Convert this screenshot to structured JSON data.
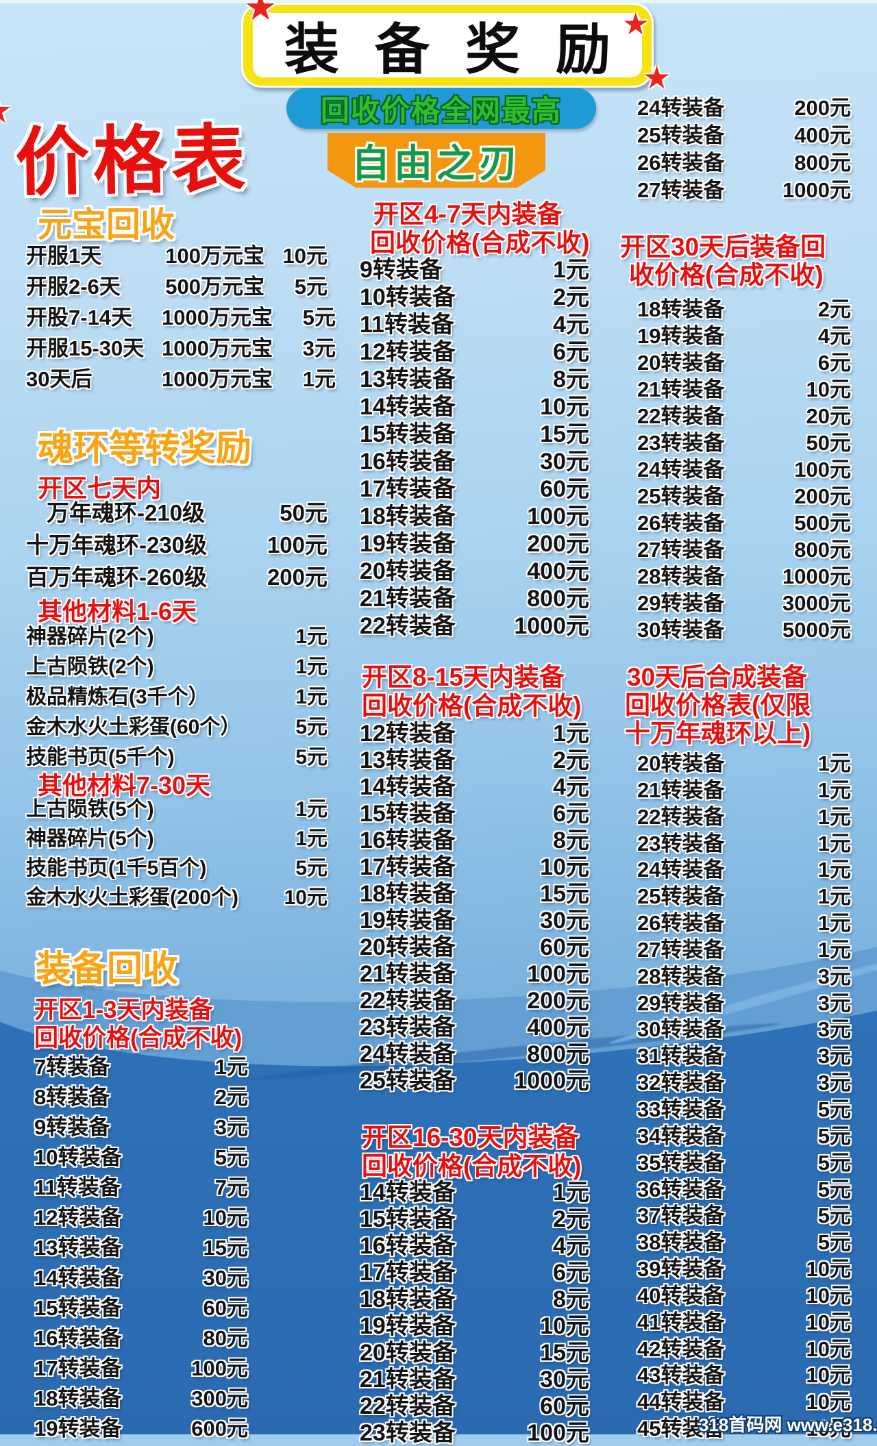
{
  "banner": {
    "title": "装备奖励"
  },
  "tagline": "回收价格全网最高",
  "game_name": "自由之刃",
  "page_title": "价格表",
  "watermark": "318首码网 www.e318.com",
  "colors": {
    "banner_yellow": "#f6e412",
    "pill_blue": "#1e9bd7",
    "tagline_green": "#2fbe2e",
    "blade_orange": "#f2970f",
    "blade_green": "#149a4a",
    "accent_red": "#e8100e",
    "header_orange": "#f8a414",
    "bg_light": "#cde7f8",
    "bg_dark": "#2d6eb4",
    "star_red": "#e8251c"
  },
  "left": {
    "yuanbao": {
      "header": "元宝回收",
      "rows": [
        {
          "label": "开服1天",
          "amount": "100万元宝",
          "price": "10元"
        },
        {
          "label": "开服2-6天",
          "amount": "500万元宝",
          "price": "5元"
        },
        {
          "label": "开股7-14天",
          "amount": "1000万元宝",
          "price": "5元"
        },
        {
          "label": "开服15-30天",
          "amount": "1000万元宝",
          "price": "3元"
        },
        {
          "label": "30天后",
          "amount": "1000万元宝",
          "price": "1元"
        }
      ]
    },
    "soulring": {
      "header": "魂环等转奖励",
      "sub1": "开区七天内",
      "ring_rows": [
        {
          "label": "万年魂环-210级",
          "price": "50元",
          "indent": true
        },
        {
          "label": "十万年魂环-230级",
          "price": "100元"
        },
        {
          "label": "百万年魂环-260级",
          "price": "200元"
        }
      ],
      "sub2": "其他材料1-6天",
      "mat1_rows": [
        {
          "label": "神器碎片(2个)",
          "price": "1元"
        },
        {
          "label": "上古陨铁(2个)",
          "price": "1元"
        },
        {
          "label": "极品精炼石(3千个）",
          "price": "1元"
        },
        {
          "label": "金木水火土彩蛋(60个）",
          "price": "5元"
        },
        {
          "label": "技能书页(5千个)",
          "price": "5元"
        }
      ],
      "sub3": "其他材料7-30天",
      "mat2_rows": [
        {
          "label": "上古陨铁(5个)",
          "price": "1元"
        },
        {
          "label": "神器碎片(5个)",
          "price": "1元"
        },
        {
          "label": "技能书页(1千5百个)",
          "price": "5元"
        },
        {
          "label": "金木水火土彩蛋(200个)",
          "price": "10元"
        }
      ]
    },
    "equip": {
      "header": "装备回收",
      "sub": [
        "开区1-3天内装备",
        "回收价格(合成不收)"
      ],
      "rows": [
        {
          "label": "7转装备",
          "price": "1元"
        },
        {
          "label": "8转装备",
          "price": "2元"
        },
        {
          "label": "9转装备",
          "price": "3元"
        },
        {
          "label": "10转装备",
          "price": "5元"
        },
        {
          "label": "11转装备",
          "price": "7元"
        },
        {
          "label": "12转装备",
          "price": "10元"
        },
        {
          "label": "13转装备",
          "price": "15元"
        },
        {
          "label": "14转装备",
          "price": "30元"
        },
        {
          "label": "15转装备",
          "price": "60元"
        },
        {
          "label": "16转装备",
          "price": "80元"
        },
        {
          "label": "17转装备",
          "price": "100元"
        },
        {
          "label": "18转装备",
          "price": "300元"
        },
        {
          "label": "19转装备",
          "price": "600元"
        }
      ]
    }
  },
  "middle": {
    "s47": {
      "sub": [
        "开区4-7天内装备",
        "回收价格(合成不收)"
      ],
      "rows": [
        {
          "label": "9转装备",
          "price": "1元"
        },
        {
          "label": "10转装备",
          "price": "2元"
        },
        {
          "label": "11转装备",
          "price": "4元"
        },
        {
          "label": "12转装备",
          "price": "6元"
        },
        {
          "label": "13转装备",
          "price": "8元"
        },
        {
          "label": "14转装备",
          "price": "10元"
        },
        {
          "label": "15转装备",
          "price": "15元"
        },
        {
          "label": "16转装备",
          "price": "30元"
        },
        {
          "label": "17转装备",
          "price": "60元"
        },
        {
          "label": "18转装备",
          "price": "100元"
        },
        {
          "label": "19转装备",
          "price": "200元"
        },
        {
          "label": "20转装备",
          "price": "400元"
        },
        {
          "label": "21转装备",
          "price": "800元"
        },
        {
          "label": "22转装备",
          "price": "1000元"
        }
      ]
    },
    "s815": {
      "sub": [
        "开区8-15天内装备",
        "回收价格(合成不收)"
      ],
      "rows": [
        {
          "label": "12转装备",
          "price": "1元"
        },
        {
          "label": "13转装备",
          "price": "2元"
        },
        {
          "label": "14转装备",
          "price": "4元"
        },
        {
          "label": "15转装备",
          "price": "6元"
        },
        {
          "label": "16转装备",
          "price": "8元"
        },
        {
          "label": "17转装备",
          "price": "10元"
        },
        {
          "label": "18转装备",
          "price": "15元"
        },
        {
          "label": "19转装备",
          "price": "30元"
        },
        {
          "label": "20转装备",
          "price": "60元"
        },
        {
          "label": "21转装备",
          "price": "100元"
        },
        {
          "label": "22转装备",
          "price": "200元"
        },
        {
          "label": "23转装备",
          "price": "400元"
        },
        {
          "label": "24转装备",
          "price": "800元"
        },
        {
          "label": "25转装备",
          "price": "1000元"
        }
      ]
    },
    "s1630": {
      "sub": [
        "开区16-30天内装备",
        "回收价格(合成不收)"
      ],
      "rows": [
        {
          "label": "14转装备",
          "price": "1元"
        },
        {
          "label": "15转装备",
          "price": "2元"
        },
        {
          "label": "16转装备",
          "price": "4元"
        },
        {
          "label": "17转装备",
          "price": "6元"
        },
        {
          "label": "18转装备",
          "price": "8元"
        },
        {
          "label": "19转装备",
          "price": "10元"
        },
        {
          "label": "20转装备",
          "price": "15元"
        },
        {
          "label": "21转装备",
          "price": "30元"
        },
        {
          "label": "22转装备",
          "price": "60元"
        },
        {
          "label": "23转装备",
          "price": "100元"
        }
      ]
    }
  },
  "right": {
    "cont_rows": [
      {
        "label": "24转装备",
        "price": "200元"
      },
      {
        "label": "25转装备",
        "price": "400元"
      },
      {
        "label": "26转装备",
        "price": "800元"
      },
      {
        "label": "27转装备",
        "price": "1000元"
      }
    ],
    "s30": {
      "sub": [
        "开区30天后装备回",
        "收价格(合成不收)"
      ],
      "rows": [
        {
          "label": "18转装备",
          "price": "2元"
        },
        {
          "label": "19转装备",
          "price": "4元"
        },
        {
          "label": "20转装备",
          "price": "6元"
        },
        {
          "label": "21转装备",
          "price": "10元"
        },
        {
          "label": "22转装备",
          "price": "20元"
        },
        {
          "label": "23转装备",
          "price": "50元"
        },
        {
          "label": "24转装备",
          "price": "100元"
        },
        {
          "label": "25转装备",
          "price": "200元"
        },
        {
          "label": "26转装备",
          "price": "500元"
        },
        {
          "label": "27转装备",
          "price": "800元"
        },
        {
          "label": "28转装备",
          "price": "1000元"
        },
        {
          "label": "29转装备",
          "price": "3000元"
        },
        {
          "label": "30转装备",
          "price": "5000元"
        }
      ]
    },
    "s30c": {
      "sub": [
        "30天后合成装备",
        "回收价格表(仅限",
        "十万年魂环以上)"
      ],
      "rows": [
        {
          "label": "20转装备",
          "price": "1元"
        },
        {
          "label": "21转装备",
          "price": "1元"
        },
        {
          "label": "22转装备",
          "price": "1元"
        },
        {
          "label": "23转装备",
          "price": "1元"
        },
        {
          "label": "24转装备",
          "price": "1元"
        },
        {
          "label": "25转装备",
          "price": "1元"
        },
        {
          "label": "26转装备",
          "price": "1元"
        },
        {
          "label": "27转装备",
          "price": "1元"
        },
        {
          "label": "28转装备",
          "price": "3元"
        },
        {
          "label": "29转装备",
          "price": "3元"
        },
        {
          "label": "30转装备",
          "price": "3元"
        },
        {
          "label": "31转装备",
          "price": "3元"
        },
        {
          "label": "32转装备",
          "price": "3元"
        },
        {
          "label": "33转装备",
          "price": "5元"
        },
        {
          "label": "34转装备",
          "price": "5元"
        },
        {
          "label": "35转装备",
          "price": "5元"
        },
        {
          "label": "36转装备",
          "price": "5元"
        },
        {
          "label": "37转装备",
          "price": "5元"
        },
        {
          "label": "38转装备",
          "price": "5元"
        },
        {
          "label": "39转装备",
          "price": "10元"
        },
        {
          "label": "40转装备",
          "price": "10元"
        },
        {
          "label": "41转装备",
          "price": "10元"
        },
        {
          "label": "42转装备",
          "price": "10元"
        },
        {
          "label": "43转装备",
          "price": "10元"
        },
        {
          "label": "44转装备",
          "price": "10元"
        },
        {
          "label": "45转装备",
          "price": "10元"
        }
      ]
    }
  }
}
